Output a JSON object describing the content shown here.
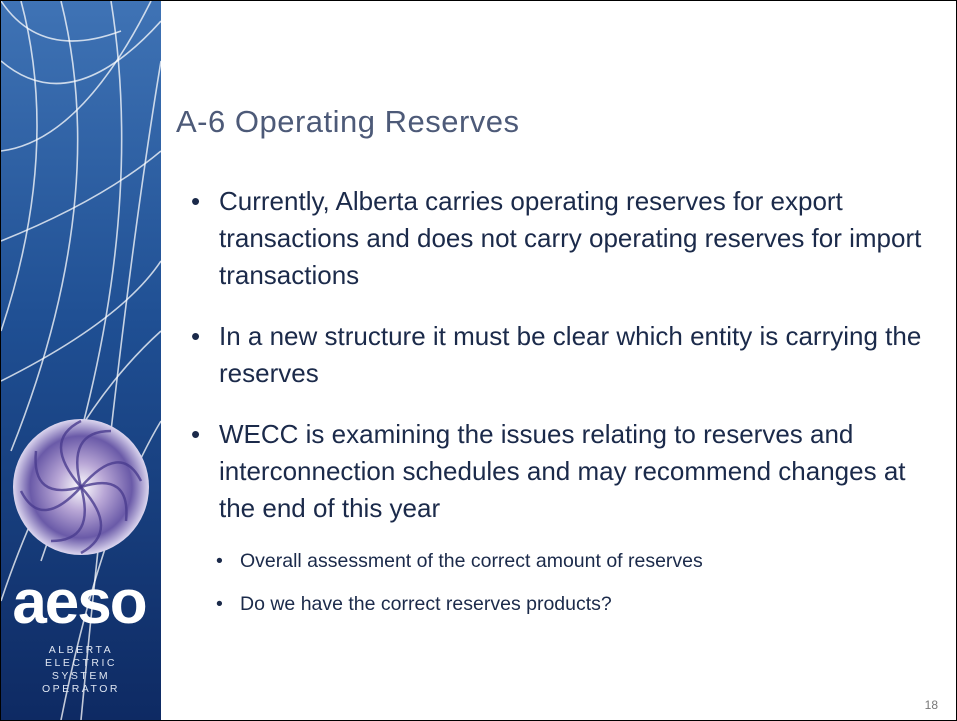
{
  "header": {
    "title": "A-6 Operating Reserves"
  },
  "bullets": [
    {
      "text": "Currently, Alberta carries operating reserves for export transactions and does not carry operating reserves for import transactions"
    },
    {
      "text": "In a new structure it must be clear which entity is carrying the reserves"
    },
    {
      "text": "WECC is examining the issues relating to reserves and interconnection schedules and may recommend changes at the end of this year",
      "sub_bullets": [
        "Overall assessment of the correct amount of reserves",
        "Do we have the correct reserves products?"
      ]
    }
  ],
  "logo": {
    "name": "aeso",
    "lines": [
      "ALBERTA",
      "ELECTRIC",
      "SYSTEM",
      "OPERATOR"
    ]
  },
  "page_number": "18"
}
